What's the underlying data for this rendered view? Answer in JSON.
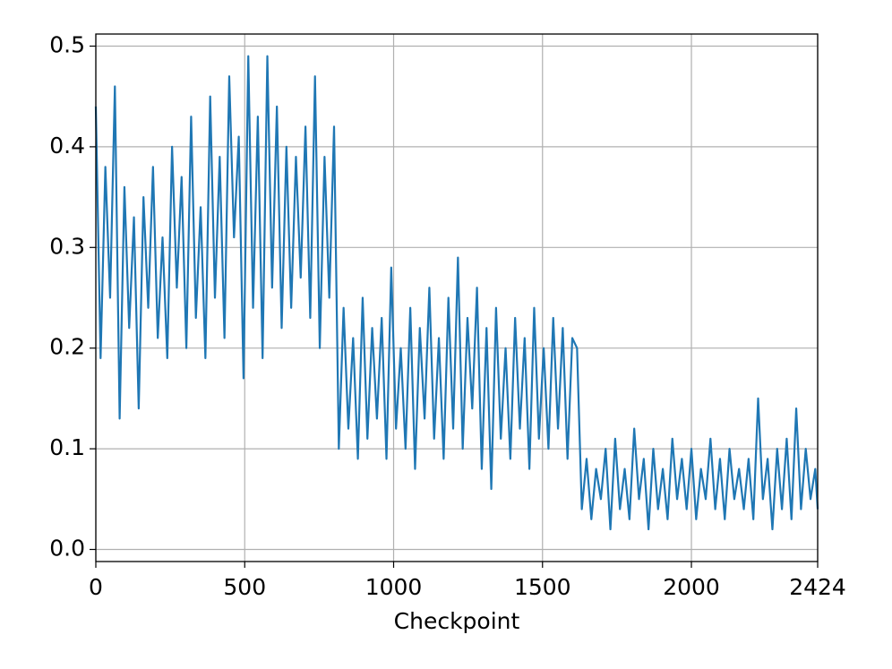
{
  "chart_data": {
    "type": "line",
    "xlabel": "Checkpoint",
    "color": "#1f77b4",
    "grid": true,
    "xlim": [
      0,
      2424
    ],
    "xticks": [
      0,
      500,
      1000,
      1500,
      2000,
      2424
    ],
    "ylim": [
      -0.012,
      0.512
    ],
    "yticks": [
      {
        "value": 0,
        "label": "0.0"
      },
      0.1,
      0.2,
      0.3,
      0.4,
      0.5
    ],
    "x": [
      0,
      16,
      32,
      48,
      64,
      80,
      96,
      112,
      128,
      144,
      160,
      176,
      192,
      208,
      224,
      240,
      256,
      272,
      288,
      304,
      320,
      336,
      352,
      368,
      384,
      400,
      416,
      432,
      448,
      464,
      480,
      496,
      512,
      528,
      544,
      560,
      576,
      592,
      608,
      624,
      640,
      656,
      672,
      688,
      704,
      720,
      736,
      752,
      768,
      784,
      800,
      816,
      832,
      848,
      864,
      880,
      896,
      912,
      928,
      944,
      960,
      976,
      992,
      1008,
      1024,
      1040,
      1056,
      1072,
      1088,
      1104,
      1120,
      1136,
      1152,
      1168,
      1184,
      1200,
      1216,
      1232,
      1248,
      1264,
      1280,
      1296,
      1312,
      1328,
      1344,
      1360,
      1376,
      1392,
      1408,
      1424,
      1440,
      1456,
      1472,
      1488,
      1504,
      1520,
      1536,
      1552,
      1568,
      1584,
      1600,
      1616,
      1632,
      1648,
      1664,
      1680,
      1696,
      1712,
      1728,
      1744,
      1760,
      1776,
      1792,
      1808,
      1824,
      1840,
      1856,
      1872,
      1888,
      1904,
      1920,
      1936,
      1952,
      1968,
      1984,
      2000,
      2016,
      2032,
      2048,
      2064,
      2080,
      2096,
      2112,
      2128,
      2144,
      2160,
      2176,
      2192,
      2208,
      2224,
      2240,
      2256,
      2272,
      2288,
      2304,
      2320,
      2336,
      2352,
      2368,
      2384,
      2400,
      2416,
      2424
    ],
    "values": [
      0.44,
      0.19,
      0.38,
      0.25,
      0.46,
      0.13,
      0.36,
      0.22,
      0.33,
      0.14,
      0.35,
      0.24,
      0.38,
      0.21,
      0.31,
      0.19,
      0.4,
      0.26,
      0.37,
      0.2,
      0.43,
      0.23,
      0.34,
      0.19,
      0.45,
      0.25,
      0.39,
      0.21,
      0.47,
      0.31,
      0.41,
      0.17,
      0.49,
      0.24,
      0.43,
      0.19,
      0.49,
      0.26,
      0.44,
      0.22,
      0.4,
      0.24,
      0.39,
      0.27,
      0.42,
      0.23,
      0.47,
      0.2,
      0.39,
      0.25,
      0.42,
      0.1,
      0.24,
      0.12,
      0.21,
      0.09,
      0.25,
      0.11,
      0.22,
      0.13,
      0.23,
      0.09,
      0.28,
      0.12,
      0.2,
      0.1,
      0.24,
      0.08,
      0.22,
      0.13,
      0.26,
      0.11,
      0.21,
      0.09,
      0.25,
      0.12,
      0.29,
      0.1,
      0.23,
      0.14,
      0.26,
      0.08,
      0.22,
      0.06,
      0.24,
      0.11,
      0.2,
      0.09,
      0.23,
      0.12,
      0.21,
      0.08,
      0.24,
      0.11,
      0.2,
      0.1,
      0.23,
      0.12,
      0.22,
      0.09,
      0.21,
      0.2,
      0.04,
      0.09,
      0.03,
      0.08,
      0.05,
      0.1,
      0.02,
      0.11,
      0.04,
      0.08,
      0.03,
      0.12,
      0.05,
      0.09,
      0.02,
      0.1,
      0.04,
      0.08,
      0.03,
      0.11,
      0.05,
      0.09,
      0.04,
      0.1,
      0.03,
      0.08,
      0.05,
      0.11,
      0.04,
      0.09,
      0.03,
      0.1,
      0.05,
      0.08,
      0.04,
      0.09,
      0.03,
      0.15,
      0.05,
      0.09,
      0.02,
      0.1,
      0.04,
      0.11,
      0.03,
      0.14,
      0.04,
      0.1,
      0.05,
      0.08,
      0.04
    ]
  }
}
